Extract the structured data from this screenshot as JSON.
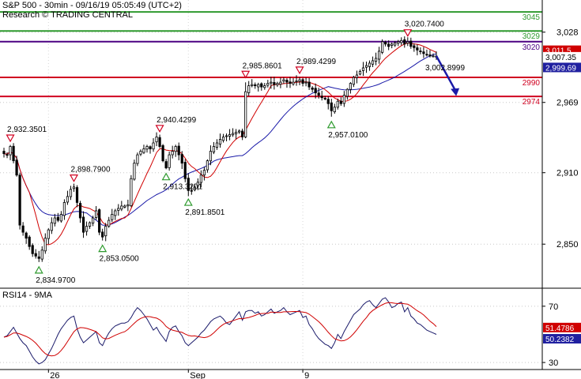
{
  "header": {
    "line1": "S&P 500 - 30min - 09/16/19 05:05:49 (UTC+2)",
    "line2": "Research © TRADING CENTRAL"
  },
  "chart_data": [
    {
      "type": "line",
      "panel": "price",
      "ylim": [
        2815,
        3055
      ],
      "y_ticks": [
        3028,
        2969,
        2910,
        2850
      ],
      "x_labels": [
        {
          "label": "26",
          "bar": 14
        },
        {
          "label": "Sep",
          "bar": 58
        },
        {
          "label": "9",
          "bar": 94
        }
      ],
      "bar_count": 137,
      "grid": true,
      "colors": {
        "candle": "#000000",
        "ma_fast": "#d00000",
        "ma_slow": "#1a1aa8",
        "support_resistance": "#d00020",
        "target": "#2e9a2e",
        "pivot": "#4b0082",
        "current_price": "#000000",
        "ma_fast_tag": "#d00000",
        "ma_slow_tag": "#2020a0",
        "arrow": "#1a1aa8"
      },
      "levels": [
        {
          "value": 3045,
          "label": "3045",
          "kind": "target"
        },
        {
          "value": 3029,
          "label": "3029",
          "kind": "target"
        },
        {
          "value": 3020,
          "label": "3020",
          "kind": "pivot"
        },
        {
          "value": 2990,
          "label": "2990",
          "kind": "support"
        },
        {
          "value": 2974,
          "label": "2974",
          "kind": "support"
        }
      ],
      "last_values": [
        {
          "value": 3011.5,
          "label": "3,011.5",
          "kind": "ma_fast"
        },
        {
          "value": 3007.35,
          "label": "3,007.35",
          "kind": "current_price"
        },
        {
          "value": 2999.69,
          "label": "2,999.69",
          "kind": "ma_slow"
        }
      ],
      "pivots": [
        {
          "bar": 2,
          "value": 2932.3501,
          "label": "2,932.3501",
          "type": "high"
        },
        {
          "bar": 11,
          "value": 2834.97,
          "label": "2,834.9700",
          "type": "low"
        },
        {
          "bar": 22,
          "value": 2898.79,
          "label": "2,898.7900",
          "type": "high"
        },
        {
          "bar": 31,
          "value": 2853.05,
          "label": "2,853.0500",
          "type": "low"
        },
        {
          "bar": 49,
          "value": 2940.4299,
          "label": "2,940.4299",
          "type": "high"
        },
        {
          "bar": 51,
          "value": 2913.3201,
          "label": "2,913.3201",
          "type": "low"
        },
        {
          "bar": 58,
          "value": 2891.8501,
          "label": "2,891.8501",
          "type": "low"
        },
        {
          "bar": 76,
          "value": 2985.8601,
          "label": "2,985.8601",
          "type": "high"
        },
        {
          "bar": 93,
          "value": 2989.4299,
          "label": "2,989.4299",
          "type": "high"
        },
        {
          "bar": 103,
          "value": 2957.01,
          "label": "2,957.0100",
          "type": "low"
        },
        {
          "bar": 127,
          "value": 3020.74,
          "label": "3,020.7400",
          "type": "high"
        }
      ],
      "projection": {
        "from_bar": 136,
        "from_value": 3008,
        "to_bar": 142,
        "to_value": 2975,
        "label": "3,002.8999"
      },
      "closes": [
        2926,
        2925,
        2932,
        2920,
        2908,
        2866,
        2860,
        2855,
        2848,
        2842,
        2840,
        2838,
        2845,
        2855,
        2862,
        2868,
        2872,
        2870,
        2875,
        2885,
        2890,
        2896,
        2898,
        2885,
        2872,
        2860,
        2865,
        2868,
        2872,
        2878,
        2860,
        2856,
        2865,
        2870,
        2875,
        2878,
        2880,
        2882,
        2882,
        2883,
        2905,
        2918,
        2925,
        2928,
        2930,
        2932,
        2930,
        2935,
        2940,
        2932,
        2920,
        2914,
        2925,
        2928,
        2932,
        2925,
        2918,
        2905,
        2895,
        2895,
        2898,
        2902,
        2908,
        2912,
        2920,
        2928,
        2932,
        2935,
        2938,
        2940,
        2941,
        2942,
        2943,
        2944,
        2945,
        2940,
        2978,
        2983,
        2984,
        2983,
        2984,
        2982,
        2983,
        2985,
        2986,
        2984,
        2985,
        2986,
        2988,
        2986,
        2985,
        2986,
        2987,
        2988,
        2985,
        2986,
        2982,
        2980,
        2977,
        2975,
        2973,
        2972,
        2968,
        2962,
        2965,
        2970,
        2968,
        2975,
        2980,
        2985,
        2990,
        2992,
        2995,
        2998,
        3000,
        3002,
        3004,
        3006,
        3012,
        3020,
        3018,
        3016,
        3018,
        3019,
        3020,
        3021,
        3018,
        3020,
        3016,
        3015,
        3013,
        3012,
        3010,
        3009,
        3008,
        3008,
        3007
      ]
    },
    {
      "type": "line",
      "panel": "rsi",
      "title": "RSI14 - 9MA",
      "ylim": [
        25,
        80
      ],
      "y_ticks": [
        70,
        30
      ],
      "colors": {
        "rsi": "#1a1a6a",
        "ma": "#d00000",
        "rsi_tag": "#2020a0",
        "ma_tag": "#d00000"
      },
      "last_values": [
        {
          "value": 51.4786,
          "label": "51.4786",
          "kind": "ma"
        },
        {
          "value": 50.2382,
          "label": "50.2382",
          "kind": "rsi"
        }
      ],
      "rsi": [
        48,
        49,
        52,
        55,
        51,
        47,
        44,
        42,
        38,
        34,
        31,
        29,
        30,
        32,
        36,
        40,
        45,
        50,
        54,
        57,
        60,
        62,
        63,
        54,
        48,
        44,
        46,
        48,
        50,
        52,
        44,
        42,
        47,
        51,
        54,
        56,
        57,
        58,
        58,
        59,
        62,
        66,
        69,
        67,
        64,
        61,
        57,
        53,
        55,
        51,
        48,
        45,
        52,
        55,
        56,
        52,
        49,
        44,
        42,
        44,
        46,
        48,
        51,
        53,
        56,
        59,
        61,
        62,
        63,
        61,
        58,
        57,
        60,
        63,
        66,
        60,
        66,
        67,
        67,
        65,
        66,
        63,
        64,
        66,
        68,
        65,
        66,
        67,
        69,
        66,
        64,
        65,
        66,
        67,
        62,
        63,
        57,
        54,
        50,
        47,
        45,
        43,
        42,
        40,
        44,
        50,
        47,
        52,
        56,
        60,
        64,
        66,
        68,
        71,
        73,
        74,
        71,
        69,
        72,
        75,
        76,
        73,
        69,
        70,
        72,
        73,
        66,
        69,
        63,
        61,
        58,
        57,
        55,
        53,
        52,
        51,
        50
      ]
    }
  ]
}
